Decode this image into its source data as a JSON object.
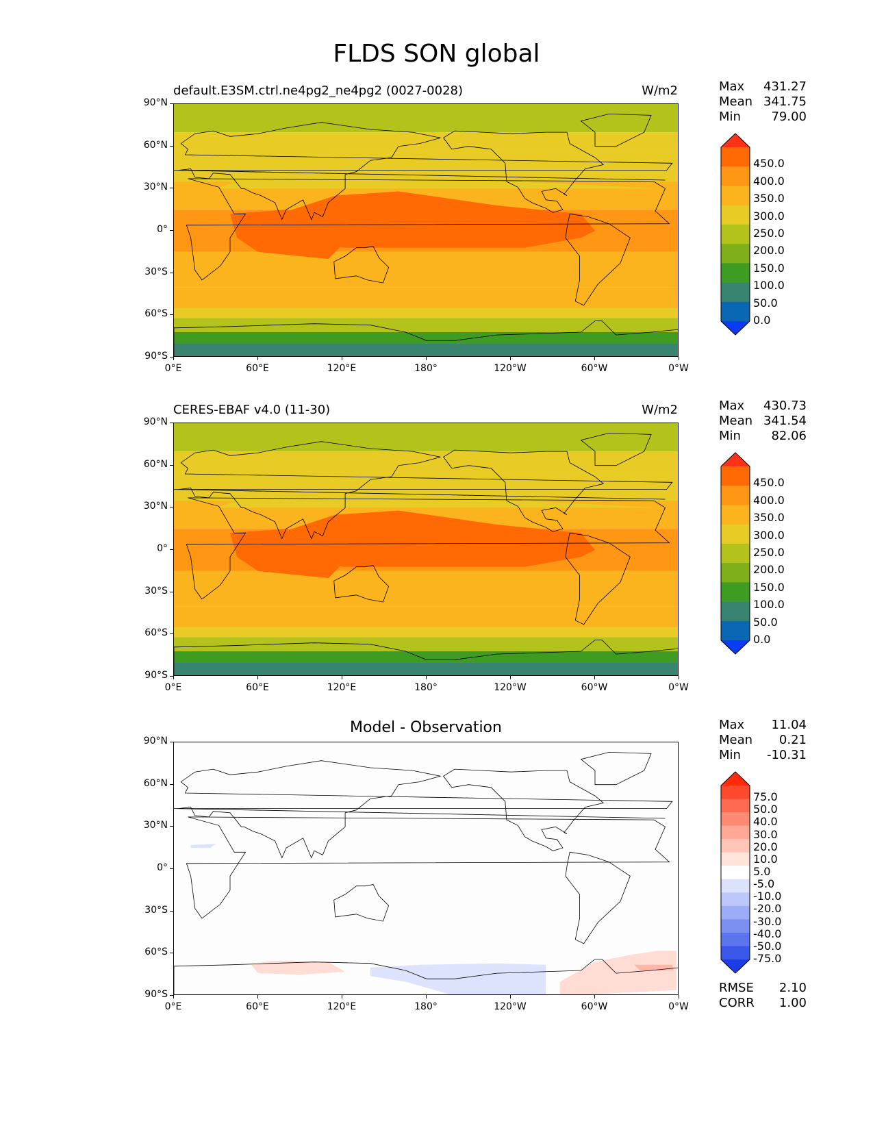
{
  "figure_title": "FLDS SON global",
  "lat_ticks": [
    "90°N",
    "60°N",
    "30°N",
    "0°",
    "30°S",
    "60°S",
    "90°S"
  ],
  "lon_ticks": [
    "0°E",
    "60°E",
    "120°E",
    "180°",
    "120°W",
    "60°W",
    "0°W"
  ],
  "panels": [
    {
      "title": "default.E3SM.ctrl.ne4pg2_ne4pg2 (0027-0028)",
      "units": "W/m2",
      "stats": {
        "max_label": "Max",
        "max": "431.27",
        "mean_label": "Mean",
        "mean": "341.75",
        "min_label": "Min",
        "min": "79.00"
      },
      "colorbar_labels": [
        "450.0",
        "400.0",
        "350.0",
        "300.0",
        "250.0",
        "200.0",
        "150.0",
        "100.0",
        "50.0",
        "0.0"
      ],
      "colorbar_colors": [
        "#ff3218",
        "#ff6a05",
        "#ff9614",
        "#fbb31e",
        "#e8cb24",
        "#b4c31c",
        "#7fb01a",
        "#3f9c22",
        "#388470",
        "#0a67b4",
        "#0a3cf5"
      ]
    },
    {
      "title": "CERES-EBAF v4.0 (11-30)",
      "units": "W/m2",
      "stats": {
        "max_label": "Max",
        "max": "430.73",
        "mean_label": "Mean",
        "mean": "341.54",
        "min_label": "Min",
        "min": "82.06"
      },
      "colorbar_labels": [
        "450.0",
        "400.0",
        "350.0",
        "300.0",
        "250.0",
        "200.0",
        "150.0",
        "100.0",
        "50.0",
        "0.0"
      ],
      "colorbar_colors": [
        "#ff3218",
        "#ff6a05",
        "#ff9614",
        "#fbb31e",
        "#e8cb24",
        "#b4c31c",
        "#7fb01a",
        "#3f9c22",
        "#388470",
        "#0a67b4",
        "#0a3cf5"
      ]
    },
    {
      "title": "Model - Observation",
      "units": "",
      "stats": {
        "max_label": "Max",
        "max": "11.04",
        "mean_label": "Mean",
        "mean": "0.21",
        "min_label": "Min",
        "min": "-10.31"
      },
      "colorbar_labels": [
        "75.0",
        "50.0",
        "40.0",
        "30.0",
        "20.0",
        "10.0",
        "5.0",
        "-5.0",
        "-10.0",
        "-20.0",
        "-30.0",
        "-40.0",
        "-50.0",
        "-75.0"
      ],
      "colorbar_colors": [
        "#ff2a0a",
        "#ff4a30",
        "#ff6a52",
        "#ff8a74",
        "#ffa896",
        "#ffc6b8",
        "#ffe4dc",
        "#ffffff",
        "#dce2fc",
        "#bcc8fa",
        "#9cacf6",
        "#7c90f2",
        "#5c74ee",
        "#3c58ea",
        "#1c3ce6"
      ],
      "rmse_label": "RMSE",
      "rmse": "2.10",
      "corr_label": "CORR",
      "corr": "1.00"
    }
  ],
  "chart_data": [
    {
      "type": "heatmap",
      "title": "default.E3SM.ctrl.ne4pg2_ne4pg2 (0027-0028)",
      "variable": "FLDS",
      "season": "SON",
      "units": "W/m2",
      "lat_range": [
        -90,
        90
      ],
      "lon_range": [
        0,
        360
      ],
      "levels": [
        0,
        50,
        100,
        150,
        200,
        250,
        300,
        350,
        400,
        450
      ],
      "max": 431.27,
      "mean": 341.75,
      "min": 79.0
    },
    {
      "type": "heatmap",
      "title": "CERES-EBAF v4.0 (11-30)",
      "variable": "FLDS",
      "season": "SON",
      "units": "W/m2",
      "lat_range": [
        -90,
        90
      ],
      "lon_range": [
        0,
        360
      ],
      "levels": [
        0,
        50,
        100,
        150,
        200,
        250,
        300,
        350,
        400,
        450
      ],
      "max": 430.73,
      "mean": 341.54,
      "min": 82.06
    },
    {
      "type": "heatmap",
      "title": "Model - Observation",
      "lat_range": [
        -90,
        90
      ],
      "lon_range": [
        0,
        360
      ],
      "levels": [
        -75,
        -50,
        -40,
        -30,
        -20,
        -10,
        -5,
        5,
        10,
        20,
        30,
        40,
        50,
        75
      ],
      "max": 11.04,
      "mean": 0.21,
      "min": -10.31,
      "rmse": 2.1,
      "corr": 1.0
    }
  ]
}
